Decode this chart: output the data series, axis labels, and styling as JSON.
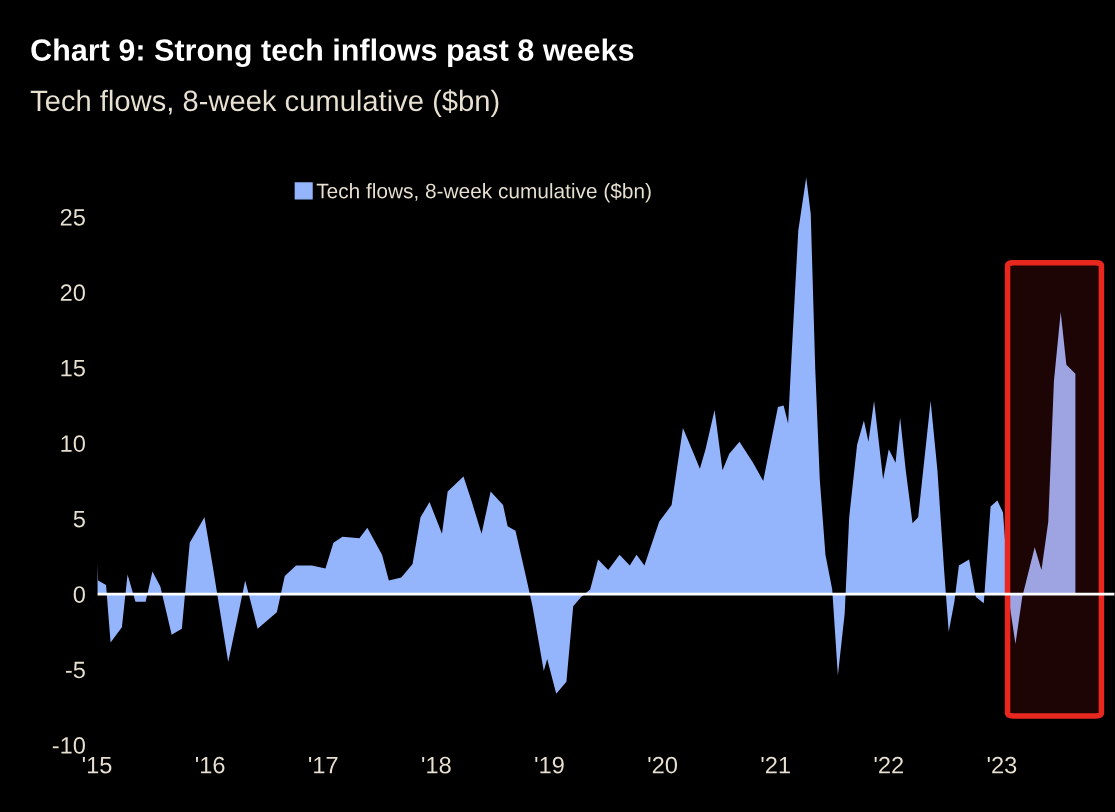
{
  "chart_data": {
    "type": "area",
    "title": "Chart 9: Strong tech inflows past 8 weeks",
    "subtitle": "Tech flows, 8-week cumulative ($bn)",
    "series": [
      {
        "name": "Tech flows, 8-week cumulative ($bn)",
        "color": "#94b4fc",
        "x": [
          2015.0,
          2015.01,
          2015.08,
          2015.12,
          2015.22,
          2015.27,
          2015.34,
          2015.43,
          2015.49,
          2015.56,
          2015.66,
          2015.75,
          2015.82,
          2015.95,
          2016.02,
          2016.16,
          2016.25,
          2016.31,
          2016.42,
          2016.59,
          2016.66,
          2016.76,
          2016.9,
          2017.02,
          2017.09,
          2017.17,
          2017.32,
          2017.39,
          2017.52,
          2017.58,
          2017.69,
          2017.79,
          2017.86,
          2017.94,
          2018.05,
          2018.1,
          2018.24,
          2018.31,
          2018.4,
          2018.48,
          2018.59,
          2018.63,
          2018.7,
          2018.8,
          2018.85,
          2018.95,
          2018.98,
          2019.06,
          2019.15,
          2019.21,
          2019.28,
          2019.36,
          2019.43,
          2019.52,
          2019.62,
          2019.71,
          2019.77,
          2019.84,
          2019.97,
          2020.08,
          2020.18,
          2020.27,
          2020.33,
          2020.38,
          2020.46,
          2020.53,
          2020.59,
          2020.68,
          2020.8,
          2020.89,
          2020.94,
          2021.02,
          2021.07,
          2021.11,
          2021.14,
          2021.2,
          2021.27,
          2021.31,
          2021.35,
          2021.39,
          2021.44,
          2021.5,
          2021.55,
          2021.61,
          2021.65,
          2021.72,
          2021.78,
          2021.82,
          2021.87,
          2021.95,
          2022.0,
          2022.06,
          2022.1,
          2022.15,
          2022.21,
          2022.26,
          2022.32,
          2022.37,
          2022.43,
          2022.49,
          2022.53,
          2022.58,
          2022.62,
          2022.71,
          2022.77,
          2022.84,
          2022.9,
          2022.96,
          2023.01,
          2023.07,
          2023.12,
          2023.18,
          2023.29,
          2023.35,
          2023.41,
          2023.46,
          2023.52,
          2023.57,
          2023.65
        ],
        "values": [
          2.0,
          0.9,
          0.6,
          -3.2,
          -2.2,
          1.3,
          -0.5,
          -0.5,
          1.5,
          0.5,
          -2.7,
          -2.3,
          3.4,
          5.1,
          2.0,
          -4.5,
          -1.3,
          0.9,
          -2.3,
          -1.2,
          1.2,
          1.9,
          1.9,
          1.7,
          3.4,
          3.8,
          3.7,
          4.4,
          2.6,
          0.9,
          1.1,
          2.0,
          5.1,
          6.1,
          4.0,
          6.8,
          7.8,
          6.2,
          4.0,
          6.8,
          5.9,
          4.5,
          4.2,
          0.9,
          -0.8,
          -5.1,
          -4.3,
          -6.6,
          -5.8,
          -0.8,
          -0.2,
          0.3,
          2.3,
          1.6,
          2.6,
          1.9,
          2.6,
          1.9,
          4.8,
          5.9,
          11.0,
          9.4,
          8.3,
          9.6,
          12.2,
          8.2,
          9.3,
          10.1,
          8.7,
          7.5,
          9.4,
          12.4,
          12.5,
          11.3,
          15.7,
          24.1,
          27.6,
          25.2,
          14.9,
          7.6,
          2.6,
          0.3,
          -5.4,
          -1.3,
          5.1,
          9.9,
          11.5,
          10.1,
          12.8,
          7.6,
          9.6,
          8.7,
          11.7,
          8.2,
          4.7,
          5.1,
          9.3,
          12.8,
          8.2,
          1.5,
          -2.5,
          -0.5,
          1.9,
          2.3,
          -0.2,
          -0.6,
          5.8,
          6.2,
          5.4,
          -0.8,
          -3.3,
          -0.2,
          3.1,
          1.6,
          4.8,
          14.1,
          18.7,
          15.2,
          14.6
        ]
      }
    ],
    "xlim": [
      2015,
      2024
    ],
    "xticks": [
      {
        "value": 2015,
        "label": "'15"
      },
      {
        "value": 2016,
        "label": "'16"
      },
      {
        "value": 2017,
        "label": "'17"
      },
      {
        "value": 2018,
        "label": "'18"
      },
      {
        "value": 2019,
        "label": "'19"
      },
      {
        "value": 2020,
        "label": "'20"
      },
      {
        "value": 2021,
        "label": "'21"
      },
      {
        "value": 2022,
        "label": "'22"
      },
      {
        "value": 2023,
        "label": "'23"
      }
    ],
    "ylim": [
      -10,
      28.5
    ],
    "yticks": [
      -10,
      -5,
      0,
      5,
      10,
      15,
      20,
      25
    ],
    "ref_lines": [
      {
        "axis": "y",
        "value": 0,
        "color": "#ffffff"
      }
    ],
    "bands": [
      {
        "axis": "x",
        "from": 2023.05,
        "to": 2023.88,
        "color": "#e8281e"
      }
    ],
    "grid": false,
    "legend": "top"
  }
}
